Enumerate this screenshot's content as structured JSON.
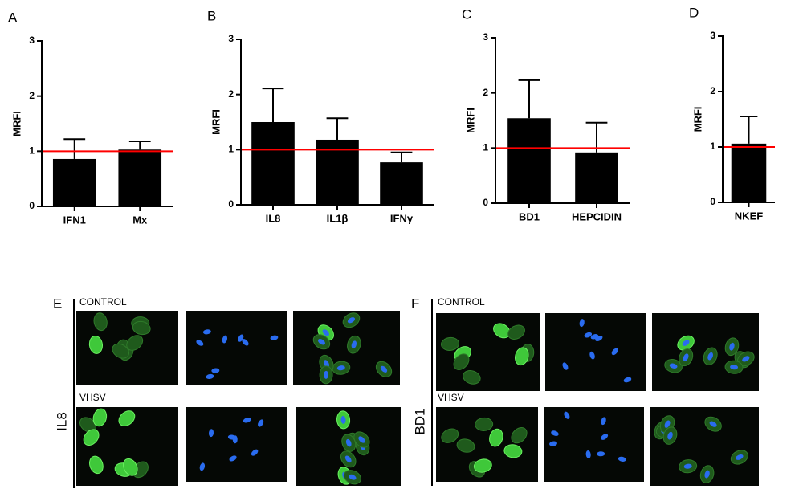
{
  "chart_data": [
    {
      "type": "bar",
      "panel_label": "A",
      "y_label": "MRFI",
      "categories": [
        "IFN1",
        "Mx"
      ],
      "values": [
        0.86,
        1.03
      ],
      "errors": [
        0.36,
        0.15
      ],
      "color": "#000000",
      "ylim": [
        0,
        3
      ],
      "yticks": [
        0,
        1,
        2,
        3
      ],
      "reference_line": 1,
      "reference_color": "#ff0000"
    },
    {
      "type": "bar",
      "panel_label": "B",
      "y_label": "MRFI",
      "categories": [
        "IL8",
        "IL1β",
        "IFNγ"
      ],
      "values": [
        1.5,
        1.18,
        0.77
      ],
      "errors": [
        0.61,
        0.39,
        0.18
      ],
      "color": "#000000",
      "ylim": [
        0,
        3
      ],
      "yticks": [
        0,
        1,
        2,
        3
      ],
      "reference_line": 1,
      "reference_color": "#ff0000"
    },
    {
      "type": "bar",
      "panel_label": "C",
      "y_label": "MRFI",
      "categories": [
        "BD1",
        "HEPCIDIN"
      ],
      "values": [
        1.54,
        0.92
      ],
      "errors": [
        0.69,
        0.54
      ],
      "color": "#000000",
      "ylim": [
        0,
        3
      ],
      "yticks": [
        0,
        1,
        2,
        3
      ],
      "reference_line": 1,
      "reference_color": "#ff0000"
    },
    {
      "type": "bar",
      "panel_label": "D",
      "y_label": "MRFI",
      "categories": [
        "NKEF"
      ],
      "values": [
        1.06
      ],
      "errors": [
        0.49
      ],
      "color": "#000000",
      "ylim": [
        0,
        3
      ],
      "yticks": [
        0,
        1,
        2,
        3
      ],
      "reference_line": 1,
      "reference_color": "#ff0000"
    }
  ],
  "micrographs": [
    {
      "label": "E",
      "target": "IL8",
      "conditions": [
        "CONTROL",
        "VHSV"
      ]
    },
    {
      "label": "F",
      "target": "BD1",
      "conditions": [
        "CONTROL",
        "VHSV"
      ]
    }
  ]
}
